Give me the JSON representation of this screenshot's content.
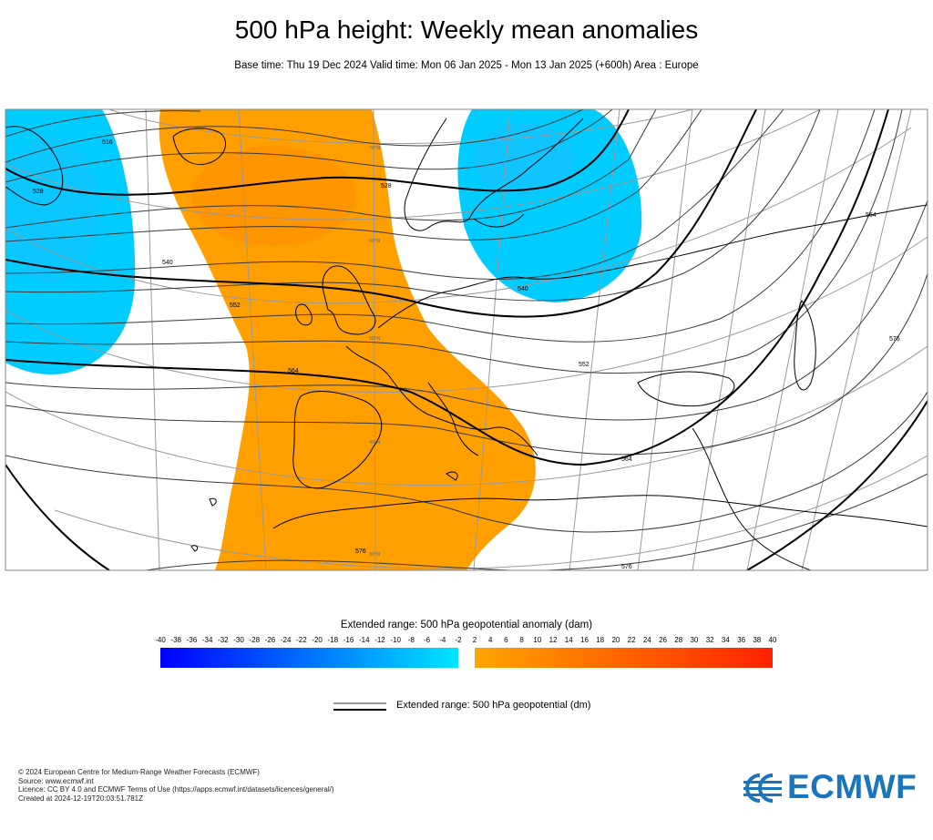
{
  "header": {
    "title": "500 hPa height: Weekly mean anomalies",
    "subtitle": "Base time: Thu 19 Dec 2024 Valid time: Mon 06 Jan 2025 - Mon 13 Jan 2025 (+600h) Area : Europe"
  },
  "map": {
    "contour_labels": [
      "516",
      "528",
      "540",
      "552",
      "564",
      "576",
      "528",
      "540",
      "552",
      "564",
      "576",
      "564",
      "576"
    ],
    "graticule_labels": [
      "70°N",
      "60°N",
      "50°N",
      "40°N",
      "30°N"
    ],
    "colors": {
      "positive_anomaly": "#ff9f00",
      "negative_anomaly": "#00ccff",
      "contour": "#000000",
      "graticule": "#9a9a9a",
      "coast": "#000000"
    }
  },
  "colorbar": {
    "title": "Extended range: 500 hPa geopotential anomaly (dam)",
    "negative_ticks": [
      "-40",
      "-38",
      "-36",
      "-34",
      "-32",
      "-30",
      "-28",
      "-26",
      "-24",
      "-22",
      "-20",
      "-18",
      "-16",
      "-14",
      "-12",
      "-10",
      "-8",
      "-6",
      "-4",
      "-2"
    ],
    "positive_ticks": [
      "2",
      "4",
      "6",
      "8",
      "10",
      "12",
      "14",
      "16",
      "18",
      "20",
      "22",
      "24",
      "26",
      "28",
      "30",
      "32",
      "34",
      "36",
      "38",
      "40"
    ],
    "negative_gradient": [
      "#0000ff",
      "#00e5ff"
    ],
    "positive_gradient": [
      "#ffa500",
      "#ff2200"
    ]
  },
  "legend": {
    "contour_label": "Extended range: 500 hPa geopotential (dm)"
  },
  "footer": {
    "lines": [
      "© 2024 European Centre for Medium-Range Weather Forecasts (ECMWF)",
      "Source: www.ecmwf.int",
      "Licence: CC BY 4.0 and ECMWF Terms of Use (https://apps.ecmwf.int/datasets/licences/general/)",
      "Created at 2024-12-19T20:03:51.781Z"
    ]
  },
  "logo": {
    "text": "ECMWF",
    "icon": "ecmwf-logo-icon",
    "color": "#1b75bc"
  }
}
